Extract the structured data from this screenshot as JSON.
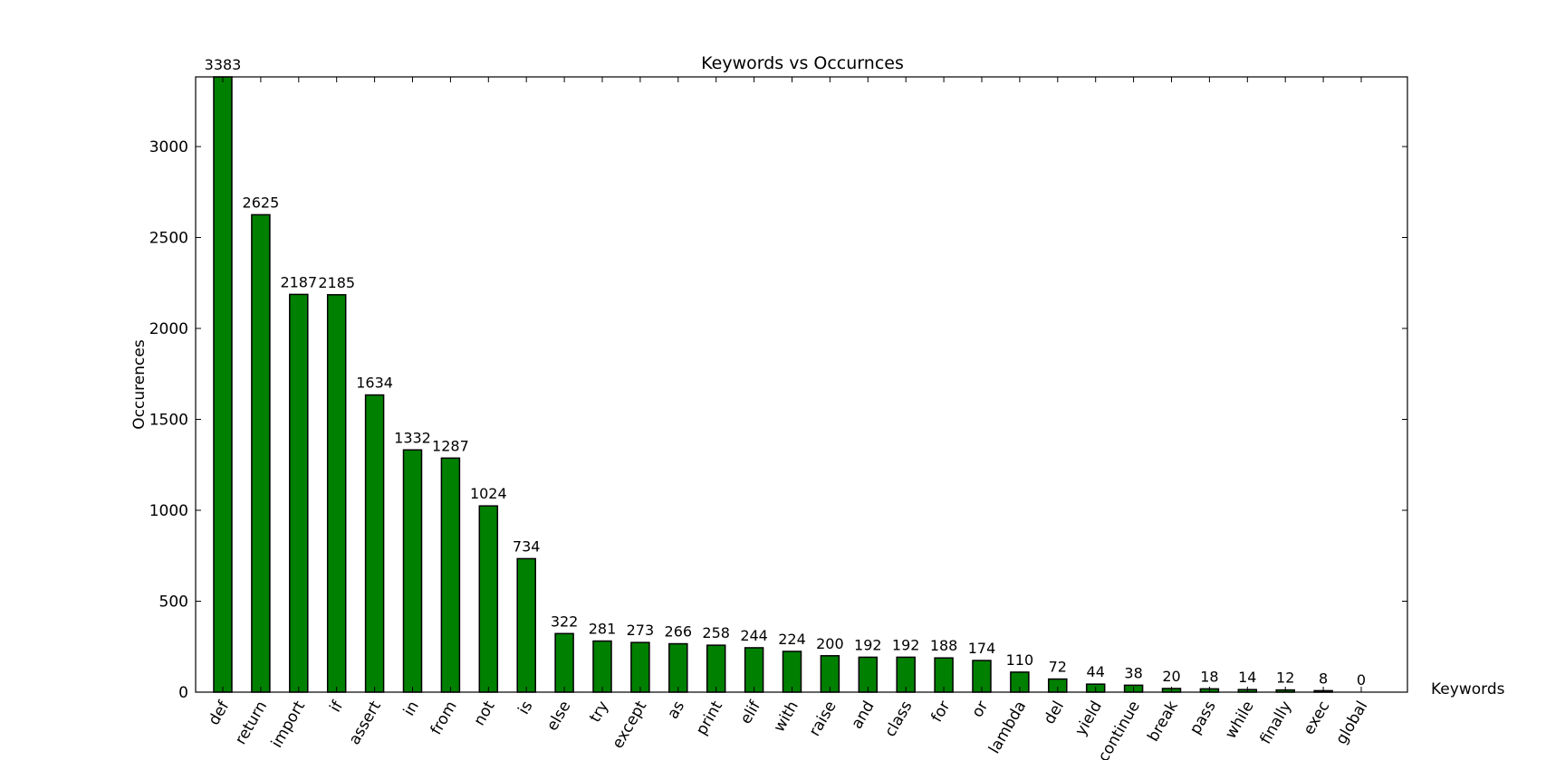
{
  "chart_data": {
    "type": "bar",
    "title": "Keywords vs Occurnces",
    "xlabel": "Keywords",
    "ylabel": "Occurences",
    "ylim": [
      0,
      3383
    ],
    "yticks": [
      0,
      500,
      1000,
      1500,
      2000,
      2500,
      3000
    ],
    "grid": false,
    "legend": "none",
    "bar_color": "#008000",
    "categories": [
      "def",
      "return",
      "import",
      "if",
      "assert",
      "in",
      "from",
      "not",
      "is",
      "else",
      "try",
      "except",
      "as",
      "print",
      "elif",
      "with",
      "raise",
      "and",
      "class",
      "for",
      "or",
      "lambda",
      "del",
      "yield",
      "continue",
      "break",
      "pass",
      "while",
      "finally",
      "exec",
      "global"
    ],
    "values": [
      3383,
      2625,
      2187,
      2185,
      1634,
      1332,
      1287,
      1024,
      734,
      322,
      281,
      273,
      266,
      258,
      244,
      224,
      200,
      192,
      192,
      188,
      174,
      110,
      72,
      44,
      38,
      20,
      18,
      14,
      12,
      8,
      0
    ],
    "data_labels": [
      "3383",
      "2625",
      "2187",
      "2185",
      "1634",
      "1332",
      "1287",
      "1024",
      "734",
      "322",
      "281",
      "273",
      "266",
      "258",
      "244",
      "224",
      "200",
      "192",
      "192",
      "188",
      "174",
      "110",
      "72",
      "44",
      "38",
      "20",
      "18",
      "14",
      "12",
      "8",
      "0"
    ]
  }
}
